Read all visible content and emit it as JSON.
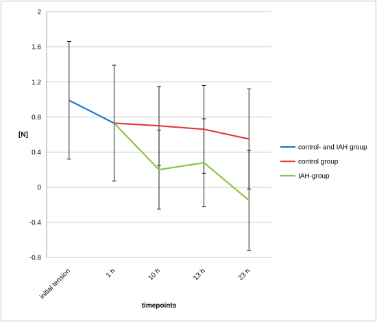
{
  "chart_data": {
    "type": "line",
    "title": "",
    "xlabel": "timepoints",
    "ylabel": "[N]",
    "categories": [
      "initial tension",
      "1 h",
      "10 h",
      "13 h",
      "23 h"
    ],
    "ylim": [
      -0.8,
      2
    ],
    "yticks": [
      "2",
      "1.6",
      "1.2",
      "0.8",
      "0.4",
      "0",
      "-0.4",
      "-0.8"
    ],
    "ytick_values": [
      2,
      1.6,
      1.2,
      0.8,
      0.4,
      0,
      -0.4,
      -0.8
    ],
    "grid": true,
    "legend_position": "right",
    "series": [
      {
        "name": "control- and IAH group",
        "color": "#1f77c4",
        "values": [
          0.99,
          0.73,
          null,
          null,
          null
        ],
        "error_low": [
          0.32,
          0.07,
          null,
          null,
          null
        ],
        "error_high": [
          1.66,
          1.39,
          null,
          null,
          null
        ]
      },
      {
        "name": "control group",
        "color": "#e03c3c",
        "values": [
          null,
          0.73,
          0.7,
          0.66,
          0.55
        ],
        "error_low": [
          null,
          null,
          0.25,
          0.16,
          -0.02
        ],
        "error_high": [
          null,
          null,
          1.15,
          1.16,
          1.12
        ]
      },
      {
        "name": "IAH-group",
        "color": "#8cc43c",
        "values": [
          null,
          0.73,
          0.2,
          0.28,
          -0.15
        ],
        "error_low": [
          null,
          null,
          -0.25,
          -0.22,
          -0.72
        ],
        "error_high": [
          null,
          null,
          0.65,
          0.78,
          0.42
        ]
      }
    ]
  }
}
